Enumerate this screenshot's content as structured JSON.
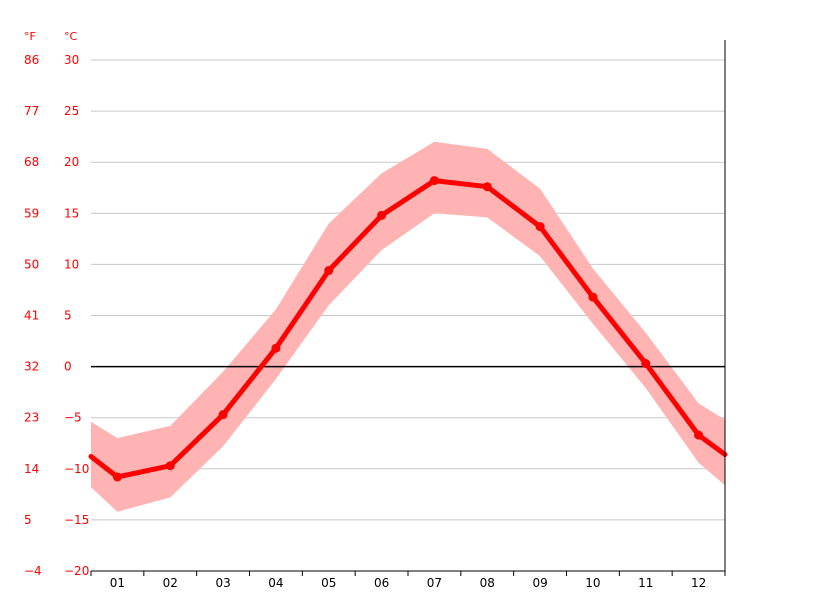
{
  "chart_data": {
    "type": "line",
    "title": "",
    "xlabel": "",
    "ylabel": "",
    "unit_left": "°F",
    "unit_right": "°C",
    "categories": [
      "01",
      "02",
      "03",
      "04",
      "05",
      "06",
      "07",
      "08",
      "09",
      "10",
      "11",
      "12"
    ],
    "y_ticks_c": [
      "30",
      "25",
      "20",
      "15",
      "10",
      "5",
      "0",
      "−5",
      "−10",
      "−15",
      "−20"
    ],
    "y_ticks_f": [
      "86",
      "77",
      "68",
      "59",
      "50",
      "41",
      "32",
      "23",
      "14",
      "5",
      "−4"
    ],
    "ylim": [
      -20,
      30
    ],
    "grid": true,
    "zero_line": true,
    "series": [
      {
        "values": [
          -10.8,
          -9.7,
          -4.7,
          1.8,
          9.4,
          14.8,
          18.2,
          17.6,
          13.7,
          6.8,
          0.3,
          -6.7
        ]
      }
    ],
    "band_high": [
      -7.0,
      -5.8,
      -0.5,
      5.6,
      14.0,
      18.9,
      22.0,
      21.3,
      17.4,
      9.6,
      3.3,
      -3.6
    ],
    "band_low": [
      -14.2,
      -12.8,
      -7.8,
      -1.2,
      6.0,
      11.4,
      15.0,
      14.6,
      10.8,
      4.2,
      -2.1,
      -9.4
    ],
    "edge_left": {
      "line": -8.8,
      "high": -5.4,
      "low": -11.8
    },
    "edge_right": {
      "line": -8.6,
      "high": -5.2,
      "low": -11.6
    },
    "colors": {
      "line": "#ff0000",
      "band": "#ffb3b3",
      "grid": "#c8c8c8",
      "zero": "#000000",
      "tick_y": "#ff0000",
      "tick_x": "#000000"
    }
  }
}
